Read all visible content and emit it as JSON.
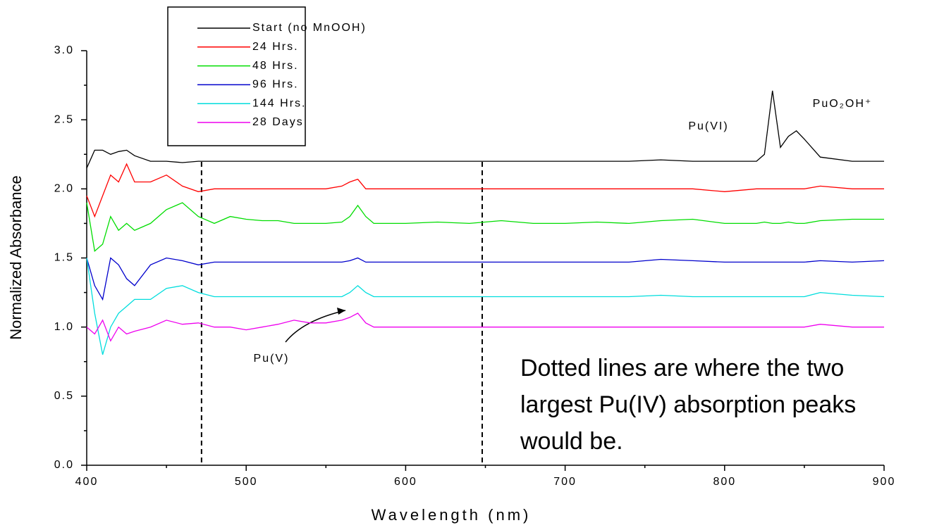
{
  "chart_data": {
    "type": "line",
    "xlabel": "Wavelength (nm)",
    "ylabel": "Normalized Absorbance",
    "x": [
      400,
      405,
      410,
      415,
      420,
      425,
      430,
      440,
      450,
      460,
      470,
      480,
      490,
      500,
      510,
      520,
      530,
      540,
      550,
      560,
      565,
      570,
      575,
      580,
      590,
      600,
      620,
      640,
      660,
      680,
      700,
      720,
      740,
      760,
      780,
      800,
      820,
      825,
      830,
      835,
      840,
      845,
      850,
      860,
      880,
      900
    ],
    "series": [
      {
        "name": "Start (no MnOOH)",
        "color": "#000000",
        "values": [
          2.15,
          2.28,
          2.28,
          2.25,
          2.27,
          2.28,
          2.24,
          2.2,
          2.2,
          2.19,
          2.2,
          2.2,
          2.2,
          2.2,
          2.2,
          2.2,
          2.2,
          2.2,
          2.2,
          2.2,
          2.2,
          2.2,
          2.2,
          2.2,
          2.2,
          2.2,
          2.2,
          2.2,
          2.2,
          2.2,
          2.2,
          2.2,
          2.2,
          2.21,
          2.2,
          2.2,
          2.2,
          2.25,
          2.71,
          2.3,
          2.38,
          2.42,
          2.36,
          2.23,
          2.2,
          2.2
        ]
      },
      {
        "name": "24 Hrs.",
        "color": "#ff0000",
        "values": [
          1.95,
          1.8,
          1.95,
          2.1,
          2.05,
          2.18,
          2.05,
          2.05,
          2.1,
          2.02,
          1.98,
          2.0,
          2.0,
          2.0,
          2.0,
          2.0,
          2.0,
          2.0,
          2.0,
          2.02,
          2.05,
          2.07,
          2.0,
          2.0,
          2.0,
          2.0,
          2.0,
          2.0,
          2.0,
          2.0,
          2.0,
          2.0,
          2.0,
          2.0,
          2.0,
          1.98,
          2.0,
          2.0,
          2.0,
          2.0,
          2.0,
          2.0,
          2.0,
          2.02,
          2.0,
          2.0
        ]
      },
      {
        "name": "48 Hrs.",
        "color": "#00dd00",
        "values": [
          1.9,
          1.55,
          1.6,
          1.8,
          1.7,
          1.75,
          1.7,
          1.75,
          1.85,
          1.9,
          1.8,
          1.75,
          1.8,
          1.78,
          1.77,
          1.77,
          1.75,
          1.75,
          1.75,
          1.76,
          1.8,
          1.88,
          1.8,
          1.75,
          1.75,
          1.75,
          1.76,
          1.75,
          1.77,
          1.75,
          1.75,
          1.76,
          1.75,
          1.77,
          1.78,
          1.75,
          1.75,
          1.76,
          1.75,
          1.75,
          1.76,
          1.75,
          1.75,
          1.77,
          1.78,
          1.78
        ]
      },
      {
        "name": "96 Hrs.",
        "color": "#0000cc",
        "values": [
          1.5,
          1.3,
          1.2,
          1.5,
          1.45,
          1.35,
          1.3,
          1.45,
          1.5,
          1.48,
          1.45,
          1.47,
          1.47,
          1.47,
          1.47,
          1.47,
          1.47,
          1.47,
          1.47,
          1.47,
          1.48,
          1.5,
          1.47,
          1.47,
          1.47,
          1.47,
          1.47,
          1.47,
          1.47,
          1.47,
          1.47,
          1.47,
          1.47,
          1.49,
          1.48,
          1.47,
          1.47,
          1.47,
          1.47,
          1.47,
          1.47,
          1.47,
          1.47,
          1.48,
          1.47,
          1.48
        ]
      },
      {
        "name": "144 Hrs.",
        "color": "#00dddd",
        "values": [
          1.5,
          1.1,
          0.8,
          1.0,
          1.1,
          1.15,
          1.2,
          1.2,
          1.28,
          1.3,
          1.25,
          1.22,
          1.22,
          1.22,
          1.22,
          1.22,
          1.22,
          1.22,
          1.22,
          1.22,
          1.25,
          1.3,
          1.25,
          1.22,
          1.22,
          1.22,
          1.22,
          1.22,
          1.22,
          1.22,
          1.22,
          1.22,
          1.22,
          1.23,
          1.22,
          1.22,
          1.22,
          1.22,
          1.22,
          1.22,
          1.22,
          1.22,
          1.22,
          1.25,
          1.23,
          1.22
        ]
      },
      {
        "name": "28 Days",
        "color": "#ee00ee",
        "values": [
          1.0,
          0.95,
          1.05,
          0.9,
          1.0,
          0.95,
          0.97,
          1.0,
          1.05,
          1.02,
          1.03,
          1.0,
          1.0,
          0.98,
          1.0,
          1.02,
          1.05,
          1.03,
          1.03,
          1.05,
          1.07,
          1.1,
          1.03,
          1.0,
          1.0,
          1.0,
          1.0,
          1.0,
          1.0,
          1.0,
          1.0,
          1.0,
          1.0,
          1.0,
          1.0,
          1.0,
          1.0,
          1.0,
          1.0,
          1.0,
          1.0,
          1.0,
          1.0,
          1.02,
          1.0,
          1.0
        ]
      }
    ],
    "xlim": [
      400,
      900
    ],
    "xticks": [
      400,
      500,
      600,
      700,
      800,
      900
    ],
    "ylim": [
      0,
      3
    ],
    "yticks": [
      {
        "value": 0,
        "label": "0.0"
      },
      0.5,
      {
        "value": 1,
        "label": "1.0"
      },
      1.5,
      {
        "value": 2,
        "label": "2.0"
      },
      2.5,
      {
        "value": 3,
        "label": "3.0"
      }
    ],
    "vlines": [
      472,
      648
    ],
    "legend": "top-left",
    "annotations": [
      "Pu(VI)",
      "PuO₂OH⁺",
      "Pu(V)"
    ],
    "note": [
      "Dotted lines are where the two",
      "largest Pu(IV) absorption peaks",
      "would be."
    ]
  }
}
